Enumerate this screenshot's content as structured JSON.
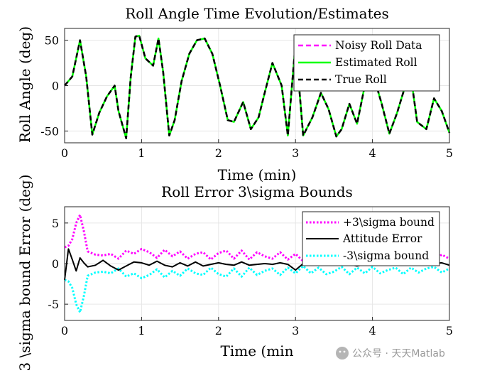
{
  "watermark": "公众号 · 天天Matlab",
  "colors": {
    "magenta": "#ff00ff",
    "green": "#00ff00",
    "black": "#000000",
    "cyan": "#00ffff",
    "grid": "#e6e6e6"
  },
  "chart_data": [
    {
      "type": "line",
      "title": "Roll Angle Time Evolution/Estimates",
      "xlabel": "Time (min)",
      "ylabel": "Roll Angle (deg)",
      "xlim": [
        0,
        5
      ],
      "ylim": [
        -63,
        63
      ],
      "xticks": [
        0,
        1,
        2,
        3,
        4,
        5
      ],
      "yticks": [
        -50,
        0,
        50
      ],
      "grid": true,
      "legend_position": "top-right",
      "x": [
        0,
        0.1,
        0.2,
        0.28,
        0.36,
        0.45,
        0.55,
        0.65,
        0.7,
        0.8,
        0.86,
        0.92,
        0.97,
        1.05,
        1.15,
        1.22,
        1.28,
        1.36,
        1.43,
        1.52,
        1.62,
        1.72,
        1.82,
        1.92,
        2.02,
        2.12,
        2.2,
        2.32,
        2.42,
        2.52,
        2.6,
        2.7,
        2.82,
        2.9,
        3.0,
        3.1,
        3.22,
        3.33,
        3.43,
        3.53,
        3.6,
        3.7,
        3.8,
        3.9,
        4.0,
        4.12,
        4.22,
        4.32,
        4.42,
        4.5,
        4.58,
        4.7,
        4.8,
        4.9,
        5.0
      ],
      "series": [
        {
          "name": "Noisy Roll Data",
          "style": "dashed",
          "color": "#ff00ff",
          "values": [
            0,
            10,
            50,
            10,
            -54,
            -30,
            -12,
            0,
            -28,
            -58,
            10,
            54,
            55,
            30,
            22,
            52,
            15,
            -55,
            -38,
            5,
            35,
            50,
            52,
            35,
            0,
            -38,
            -40,
            -18,
            -48,
            -35,
            -8,
            25,
            0,
            -55,
            47,
            -55,
            -35,
            -8,
            -26,
            -56,
            -48,
            -20,
            -42,
            0,
            15,
            -20,
            -53,
            -30,
            -2,
            10,
            -40,
            -48,
            -14,
            -28,
            -52
          ]
        },
        {
          "name": "Estimated Roll",
          "style": "solid",
          "color": "#00ff00",
          "values": [
            0,
            10,
            50,
            10,
            -54,
            -30,
            -12,
            0,
            -28,
            -58,
            10,
            54,
            55,
            30,
            22,
            52,
            15,
            -55,
            -38,
            5,
            35,
            50,
            52,
            35,
            0,
            -38,
            -40,
            -18,
            -48,
            -35,
            -8,
            25,
            0,
            -55,
            47,
            -55,
            -35,
            -8,
            -26,
            -56,
            -48,
            -20,
            -42,
            0,
            15,
            -20,
            -53,
            -30,
            -2,
            10,
            -40,
            -48,
            -14,
            -28,
            -52
          ]
        },
        {
          "name": "True Roll",
          "style": "dashed",
          "color": "#000000",
          "values": [
            0,
            10,
            50,
            10,
            -54,
            -30,
            -12,
            0,
            -28,
            -58,
            10,
            54,
            55,
            30,
            22,
            52,
            15,
            -55,
            -38,
            5,
            35,
            50,
            52,
            35,
            0,
            -38,
            -40,
            -18,
            -48,
            -35,
            -8,
            25,
            0,
            -55,
            47,
            -55,
            -35,
            -8,
            -26,
            -56,
            -48,
            -20,
            -42,
            0,
            15,
            -20,
            -53,
            -30,
            -2,
            10,
            -40,
            -48,
            -14,
            -28,
            -52
          ]
        }
      ]
    },
    {
      "type": "line",
      "title": "Roll Error 3\\sigma Bounds",
      "xlabel": "Time (min",
      "ylabel": "3 \\sigma bound Error (deg)",
      "xlim": [
        0,
        5
      ],
      "ylim": [
        -7,
        7
      ],
      "xticks": [
        0,
        1,
        2,
        3,
        4,
        5
      ],
      "yticks": [
        -5,
        0,
        5
      ],
      "grid": true,
      "legend_position": "top-right",
      "x": [
        0,
        0.05,
        0.1,
        0.15,
        0.2,
        0.25,
        0.3,
        0.4,
        0.5,
        0.6,
        0.7,
        0.8,
        0.9,
        1.0,
        1.1,
        1.2,
        1.3,
        1.4,
        1.5,
        1.6,
        1.7,
        1.8,
        1.9,
        2.0,
        2.1,
        2.2,
        2.3,
        2.4,
        2.5,
        2.6,
        2.7,
        2.8,
        2.9,
        3.0,
        3.1,
        3.2,
        3.3,
        3.4,
        3.5,
        3.6,
        3.7,
        3.8,
        3.9,
        4.0,
        4.1,
        4.2,
        4.3,
        4.4,
        4.5,
        4.6,
        4.7,
        4.8,
        4.9,
        5.0
      ],
      "series": [
        {
          "name": "+3\\sigma bound",
          "style": "dotted",
          "color": "#ff00ff",
          "values": [
            2.0,
            2.2,
            3.0,
            5.0,
            6.0,
            4.0,
            1.5,
            1.1,
            1.0,
            1.2,
            0.6,
            1.6,
            1.2,
            1.8,
            1.4,
            0.7,
            1.7,
            0.9,
            1.5,
            0.6,
            1.2,
            1.4,
            0.5,
            1.3,
            1.6,
            0.6,
            1.6,
            0.5,
            1.4,
            0.9,
            0.6,
            1.4,
            0.5,
            1.2,
            0.3,
            1.2,
            0.5,
            1.3,
            1.0,
            0.4,
            1.3,
            0.5,
            1.2,
            0.4,
            1.2,
            0.8,
            0.5,
            1.3,
            0.5,
            1.1,
            0.6,
            0.4,
            1.1,
            0.6
          ]
        },
        {
          "name": "Attitude Error",
          "style": "solid",
          "color": "#000000",
          "values": [
            -2.0,
            1.8,
            0.5,
            -0.9,
            0.7,
            0.1,
            -0.4,
            -0.2,
            0.4,
            -0.3,
            -0.8,
            -0.3,
            0.2,
            0.1,
            -0.2,
            0.3,
            -0.2,
            -0.4,
            0.1,
            -0.3,
            0.2,
            -0.3,
            -0.1,
            0.1,
            -0.1,
            -0.2,
            0.2,
            -0.2,
            -0.1,
            0.0,
            -0.1,
            0.1,
            -0.1,
            -0.8,
            0.0,
            -0.2,
            -0.1,
            0.1,
            -0.2,
            0.1,
            -0.1,
            -0.3,
            -0.1,
            0.1,
            -0.2,
            0.1,
            -0.2,
            0.0,
            -0.1,
            0.1,
            -0.2,
            0.0,
            0.1,
            -0.2
          ]
        },
        {
          "name": "-3\\sigma bound",
          "style": "dotted",
          "color": "#00ffff",
          "values": [
            -2.0,
            -2.2,
            -3.0,
            -5.0,
            -6.0,
            -4.0,
            -1.5,
            -1.1,
            -1.0,
            -1.2,
            -0.6,
            -1.6,
            -1.2,
            -1.8,
            -1.4,
            -0.7,
            -1.7,
            -0.9,
            -1.5,
            -0.6,
            -1.2,
            -1.4,
            -0.5,
            -1.3,
            -1.6,
            -0.6,
            -1.6,
            -0.5,
            -1.4,
            -0.9,
            -0.6,
            -1.4,
            -0.5,
            -1.2,
            -0.3,
            -1.2,
            -0.5,
            -1.3,
            -1.0,
            -0.4,
            -1.3,
            -0.5,
            -1.2,
            -0.4,
            -1.2,
            -0.8,
            -0.5,
            -1.3,
            -0.5,
            -1.1,
            -0.6,
            -0.4,
            -1.1,
            -0.6
          ]
        }
      ]
    }
  ]
}
